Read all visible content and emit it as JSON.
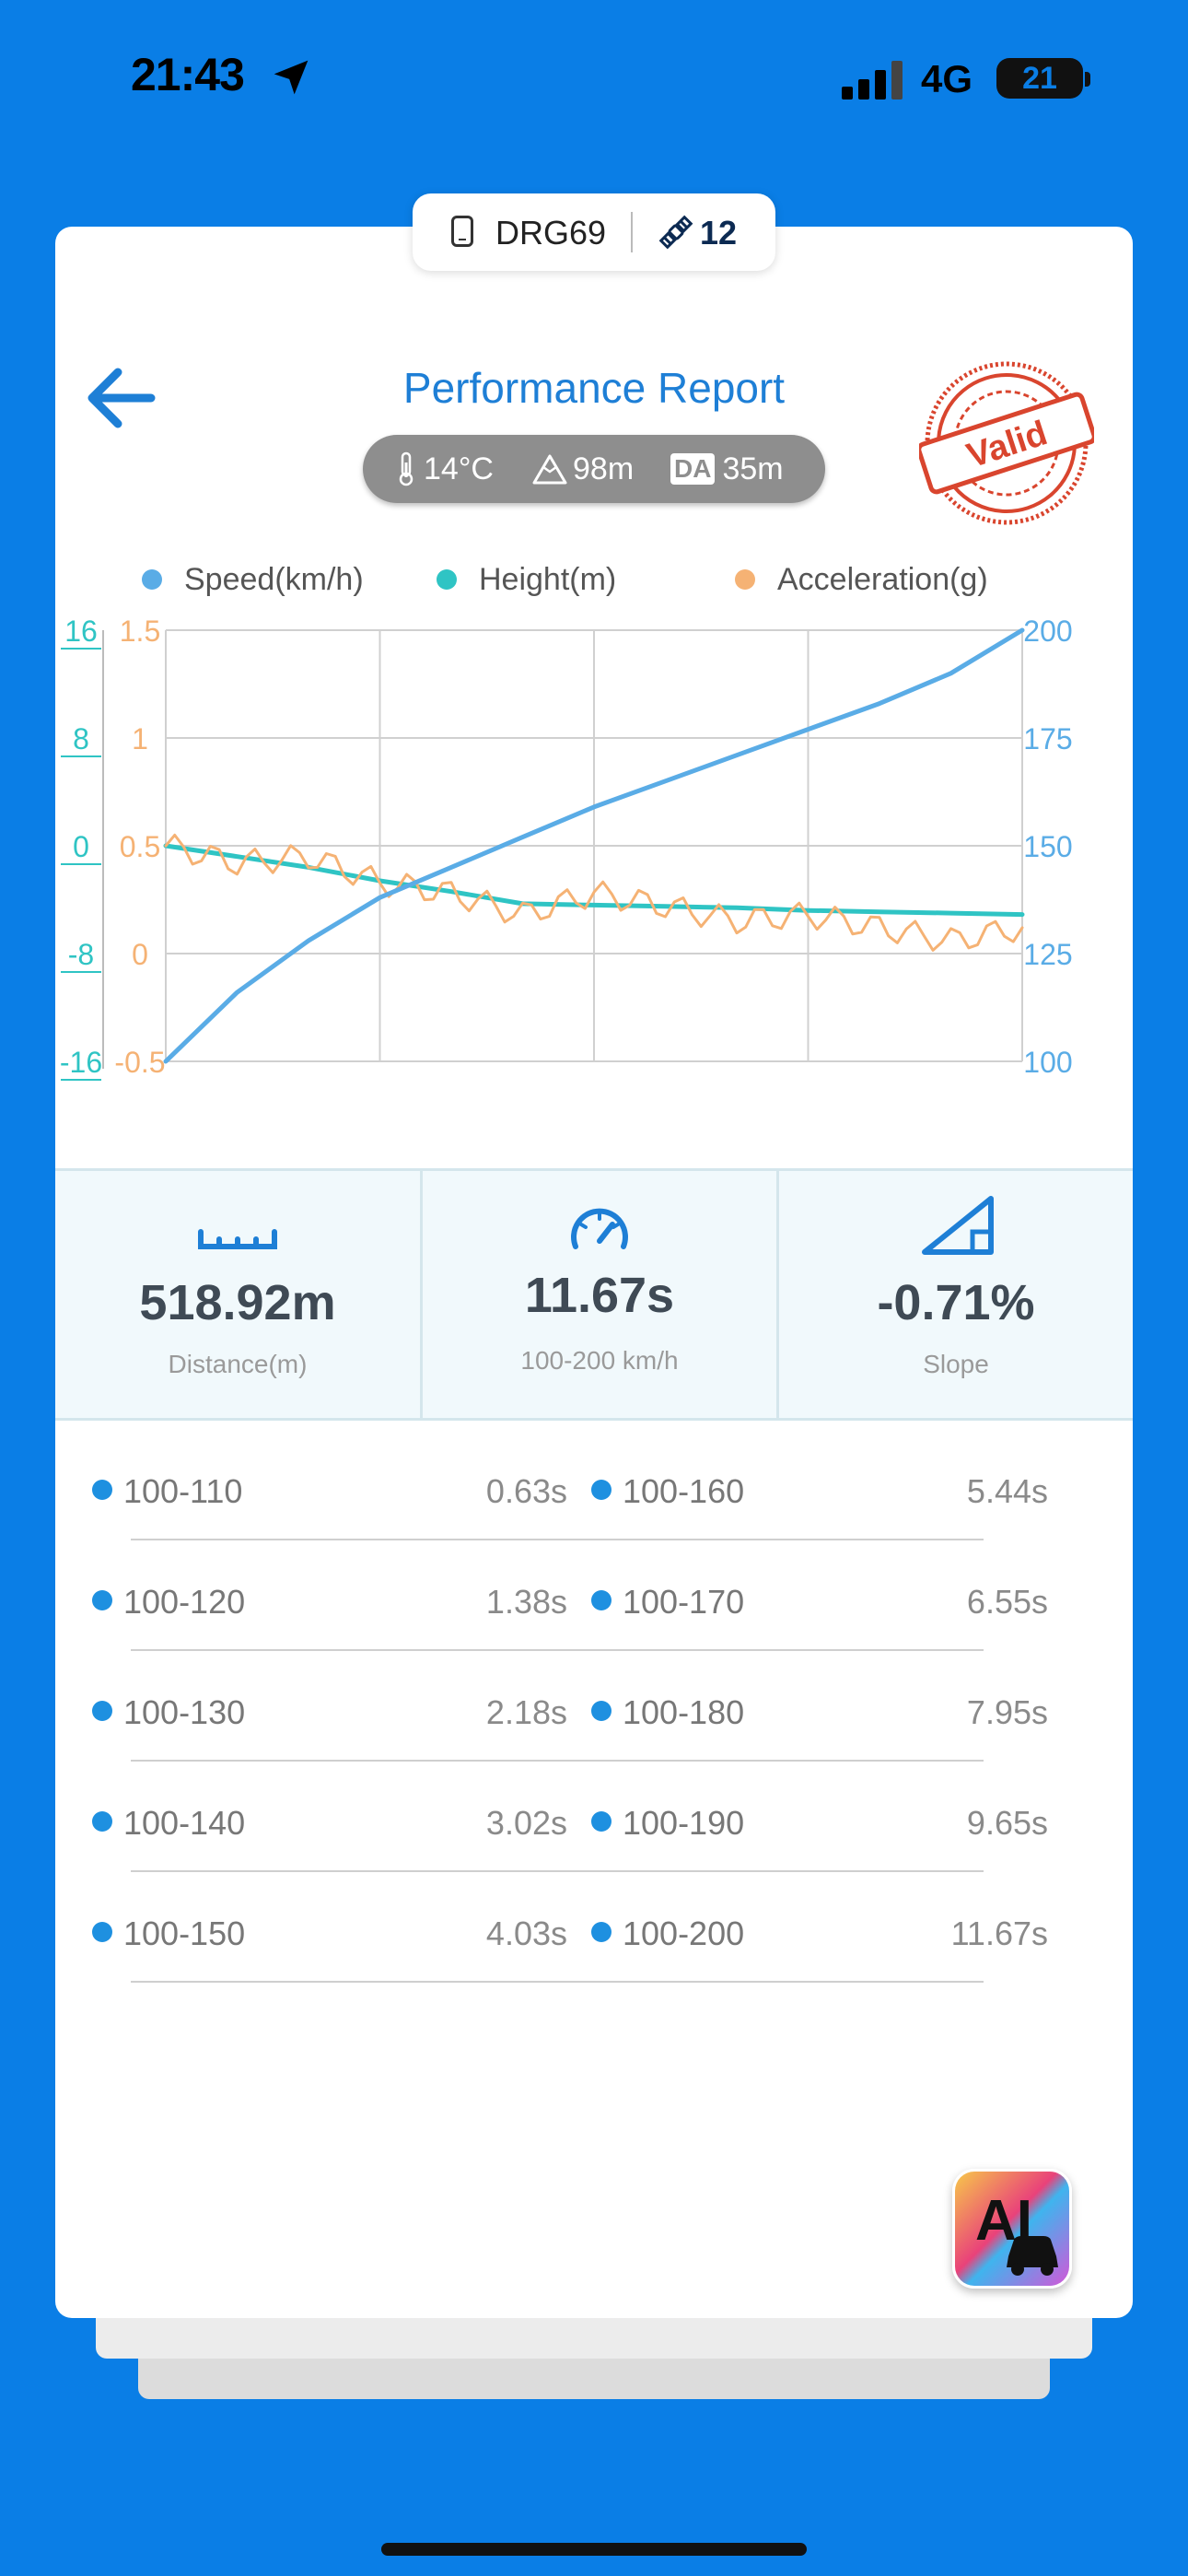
{
  "status_bar": {
    "time": "21:43",
    "network": "4G",
    "battery": "21"
  },
  "device": {
    "name": "DRG69",
    "satellites": "12"
  },
  "header": {
    "title": "Performance Report",
    "stamp": "Valid"
  },
  "conditions": {
    "temperature": "14°C",
    "altitude": "98m",
    "da_label": "DA",
    "density_altitude": "35m"
  },
  "colors": {
    "speed": "#5aace6",
    "height": "#2fc4c4",
    "acceleration": "#f5b274",
    "accent": "#1e7fd6"
  },
  "legend": [
    {
      "label": "Speed(km/h)",
      "color": "#5aace6"
    },
    {
      "label": "Height(m)",
      "color": "#2fc4c4"
    },
    {
      "label": "Acceleration(g)",
      "color": "#f5b274"
    }
  ],
  "chart_data": {
    "type": "line",
    "x": [
      0,
      1,
      2,
      3,
      4,
      5,
      6,
      7,
      8,
      9,
      10,
      11,
      12
    ],
    "series": [
      {
        "name": "Speed(km/h)",
        "axis": "right",
        "values": [
          100,
          116,
          128,
          138,
          145,
          152,
          159,
          165,
          171,
          177,
          183,
          190,
          200
        ]
      },
      {
        "name": "Height(m)",
        "axis": "left-outer",
        "values": [
          0,
          -0.8,
          -1.6,
          -2.6,
          -3.4,
          -4.3,
          -4.4,
          -4.5,
          -4.6,
          -4.8,
          -4.9,
          -5.0,
          -5.1
        ]
      },
      {
        "name": "Acceleration(g)",
        "axis": "left-inner",
        "values": [
          0.5,
          0.42,
          0.45,
          0.33,
          0.28,
          0.18,
          0.28,
          0.22,
          0.15,
          0.18,
          0.12,
          0.06,
          0.12
        ]
      }
    ],
    "y_right": {
      "ticks": [
        "200",
        "175",
        "150",
        "125",
        "100"
      ],
      "range": [
        100,
        200
      ]
    },
    "y_left_outer": {
      "ticks": [
        "16",
        "8",
        "0",
        "-8",
        "-16"
      ],
      "range": [
        -16,
        16
      ]
    },
    "y_left_inner": {
      "ticks": [
        "1.5",
        "1",
        "0.5",
        "0",
        "-0.5"
      ],
      "range": [
        -0.5,
        1.5
      ]
    },
    "grid": true
  },
  "stats": [
    {
      "icon": "ruler-icon",
      "value": "518.92m",
      "label": "Distance(m)"
    },
    {
      "icon": "speedometer-icon",
      "value": "11.67s",
      "label": "100-200 km/h"
    },
    {
      "icon": "slope-icon",
      "value": "-0.71%",
      "label": "Slope"
    }
  ],
  "splits_left": [
    {
      "range": "100-110",
      "time": "0.63s"
    },
    {
      "range": "100-120",
      "time": "1.38s"
    },
    {
      "range": "100-130",
      "time": "2.18s"
    },
    {
      "range": "100-140",
      "time": "3.02s"
    },
    {
      "range": "100-150",
      "time": "4.03s"
    }
  ],
  "splits_right": [
    {
      "range": "100-160",
      "time": "5.44s"
    },
    {
      "range": "100-170",
      "time": "6.55s"
    },
    {
      "range": "100-180",
      "time": "7.95s"
    },
    {
      "range": "100-190",
      "time": "9.65s"
    },
    {
      "range": "100-200",
      "time": "11.67s"
    }
  ],
  "ai_button": {
    "label": "AI"
  }
}
